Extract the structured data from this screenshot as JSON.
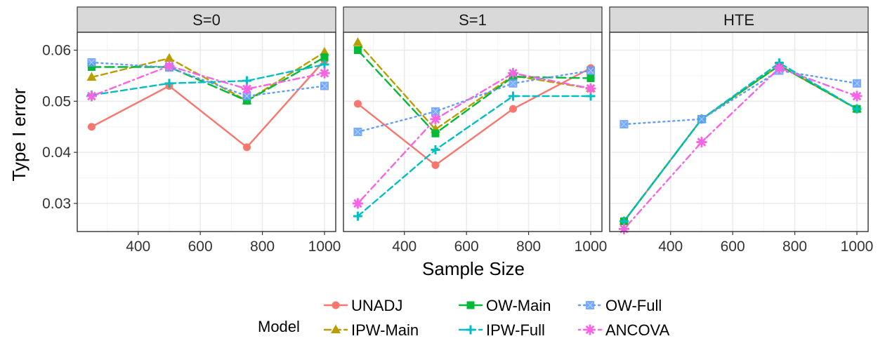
{
  "chart_data": {
    "type": "line",
    "xlabel": "Sample Size",
    "ylabel": "Type I error",
    "xlim": [
      240,
      1000
    ],
    "ylim": [
      0.0245,
      0.0635
    ],
    "x_ticks": [
      400,
      600,
      800,
      1000
    ],
    "y_ticks": [
      0.03,
      0.04,
      0.05,
      0.06
    ],
    "y_tick_labels": [
      "0.03",
      "0.04",
      "0.05",
      "0.06"
    ],
    "grid": true,
    "legend_title": "Model",
    "legend_position": "bottom",
    "x": [
      250,
      500,
      750,
      1000
    ],
    "panels": [
      {
        "title": "S=0",
        "series": [
          {
            "name": "UNADJ",
            "values": [
              0.045,
              0.053,
              0.041,
              0.058
            ]
          },
          {
            "name": "IPW-Main",
            "values": [
              0.0547,
              0.0584,
              0.0501,
              0.0596
            ]
          },
          {
            "name": "OW-Main",
            "values": [
              0.0567,
              0.0567,
              0.0501,
              0.0586
            ]
          },
          {
            "name": "IPW-Full",
            "values": [
              0.0512,
              0.0535,
              0.054,
              0.0572
            ]
          },
          {
            "name": "OW-Full",
            "values": [
              0.0576,
              0.0566,
              0.051,
              0.053
            ]
          },
          {
            "name": "ANCOVA",
            "values": [
              0.051,
              0.0569,
              0.0524,
              0.0555
            ]
          }
        ]
      },
      {
        "title": "S=1",
        "series": [
          {
            "name": "UNADJ",
            "values": [
              0.0495,
              0.0375,
              0.0485,
              0.0565
            ]
          },
          {
            "name": "IPW-Main",
            "values": [
              0.0615,
              0.0445,
              0.055,
              0.0525
            ]
          },
          {
            "name": "OW-Main",
            "values": [
              0.06,
              0.0437,
              0.0548,
              0.0545
            ]
          },
          {
            "name": "IPW-Full",
            "values": [
              0.0275,
              0.0405,
              0.051,
              0.051
            ]
          },
          {
            "name": "OW-Full",
            "values": [
              0.044,
              0.048,
              0.0535,
              0.056
            ]
          },
          {
            "name": "ANCOVA",
            "values": [
              0.03,
              0.0465,
              0.0555,
              0.0525
            ]
          }
        ]
      },
      {
        "title": "HTE",
        "series": [
          {
            "name": "UNADJ",
            "values": [
              0.0265,
              0.0465,
              0.057,
              0.0485
            ]
          },
          {
            "name": "IPW-Main",
            "values": [
              0.0265,
              0.0465,
              0.057,
              0.0485
            ]
          },
          {
            "name": "OW-Main",
            "values": [
              0.0265,
              0.0465,
              0.057,
              0.0485
            ]
          },
          {
            "name": "IPW-Full",
            "values": [
              0.0265,
              0.0465,
              0.0575,
              0.0485
            ]
          },
          {
            "name": "OW-Full",
            "values": [
              0.0455,
              0.0465,
              0.056,
              0.0535
            ]
          },
          {
            "name": "ANCOVA",
            "values": [
              0.025,
              0.042,
              0.0565,
              0.051
            ]
          }
        ]
      }
    ],
    "series_styles": [
      {
        "name": "UNADJ",
        "color": "#F8766D",
        "linetype": "solid",
        "shape": "circle"
      },
      {
        "name": "IPW-Main",
        "color": "#B79F00",
        "linetype": "dashed",
        "shape": "triangle"
      },
      {
        "name": "OW-Main",
        "color": "#00BA38",
        "linetype": "longdash",
        "shape": "square"
      },
      {
        "name": "IPW-Full",
        "color": "#00BFC4",
        "linetype": "dashed",
        "shape": "plus"
      },
      {
        "name": "OW-Full",
        "color": "#619CFF",
        "linetype": "dotted",
        "shape": "boxed-x"
      },
      {
        "name": "ANCOVA",
        "color": "#F564E3",
        "linetype": "dotdash",
        "shape": "asterisk"
      }
    ],
    "legend_order": [
      "UNADJ",
      "IPW-Main",
      "OW-Main",
      "IPW-Full",
      "OW-Full",
      "ANCOVA"
    ]
  },
  "colors": {
    "panel_background": "#ffffff",
    "panel_border": "#333333",
    "strip_background": "#d9d9d9",
    "grid_major": "#ebebeb",
    "grid_minor": "#f5f5f5"
  }
}
